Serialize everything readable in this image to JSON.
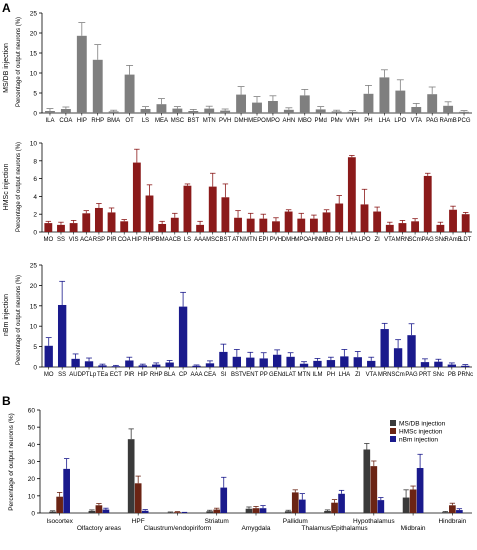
{
  "panel_letters": [
    "A",
    "B"
  ],
  "chart_data": [
    {
      "type": "bar",
      "row_label": "MS/DB injection",
      "ylabel": "Percentage of output neurons (%)",
      "ylim": [
        0,
        25
      ],
      "yticks": [
        0,
        5,
        10,
        15,
        20,
        25
      ],
      "color": "#7f7f7f",
      "categories": [
        "ILA",
        "COA",
        "HIP",
        "RHP",
        "BMA",
        "OT",
        "LS",
        "MEA",
        "MSC",
        "BST",
        "MTN",
        "PVH",
        "DMH",
        "MEPO",
        "MPO",
        "AHN",
        "MBO",
        "PMd",
        "PMv",
        "VMH",
        "PH",
        "LHA",
        "LPO",
        "VTA",
        "PAG",
        "RAmB",
        "PCG"
      ],
      "values": [
        0.5,
        1,
        19.3,
        13.3,
        0.4,
        9.6,
        1,
        2.2,
        1.1,
        0.5,
        1.1,
        0.6,
        4.6,
        2.6,
        3,
        0.8,
        4.4,
        0.9,
        0.4,
        0.3,
        4.8,
        8.9,
        5.6,
        1.5,
        4.7,
        1.8,
        0.3
      ],
      "errors": [
        0.6,
        0.5,
        3.3,
        3.8,
        0.3,
        2.3,
        0.6,
        1.4,
        0.5,
        0.4,
        0.6,
        0.4,
        2,
        1.5,
        1.3,
        0.5,
        1.5,
        0.7,
        0.3,
        0.3,
        2.1,
        1.9,
        2.7,
        0.9,
        1.8,
        1,
        0.3
      ]
    },
    {
      "type": "bar",
      "row_label": "HMSc injection",
      "ylabel": "Percentage of output neurons (%)",
      "ylim": [
        0,
        10
      ],
      "yticks": [
        0,
        2,
        4,
        6,
        8,
        10
      ],
      "color": "#8b1a1a",
      "categories": [
        "MO",
        "SS",
        "VIS",
        "ACA",
        "RSP",
        "PIR",
        "COA",
        "HIP",
        "RHP",
        "BMA",
        "ACB",
        "LS",
        "AAA",
        "MSC",
        "BST",
        "ATN",
        "MTN",
        "EPI",
        "PVH",
        "DMH",
        "MPO",
        "AHN",
        "MBO",
        "PH",
        "LHA",
        "LPO",
        "ZI",
        "VTA",
        "MRN",
        "SCm",
        "PAG",
        "SNc",
        "RAmB",
        "LDT"
      ],
      "values": [
        1,
        0.8,
        1,
        2.1,
        2.7,
        2.2,
        1.2,
        7.8,
        4.1,
        0.9,
        1.6,
        5.2,
        0.8,
        5.1,
        3.9,
        1.6,
        1.5,
        1.5,
        1.2,
        2.3,
        1.5,
        1.5,
        2.2,
        3.2,
        8.4,
        3.1,
        2.3,
        0.8,
        1,
        1.2,
        6.3,
        0.8,
        2.5,
        2
      ],
      "errors": [
        0.2,
        0.3,
        0.3,
        0.3,
        0.5,
        0.5,
        0.2,
        1.5,
        1.2,
        0.3,
        0.5,
        0.2,
        0.4,
        1.5,
        1.5,
        0.8,
        0.6,
        0.5,
        0.4,
        0.2,
        0.6,
        0.4,
        0.3,
        0.9,
        0.2,
        1.7,
        0.5,
        0.3,
        0.3,
        0.3,
        0.3,
        0.3,
        0.4,
        0.2
      ]
    },
    {
      "type": "bar",
      "row_label": "nBm injection",
      "ylabel": "Percentage of output neurons (%)",
      "ylim": [
        0,
        25
      ],
      "yticks": [
        0,
        5,
        10,
        15,
        20,
        25
      ],
      "color": "#1a1a8c",
      "categories": [
        "MO",
        "SS",
        "AUD",
        "PTLp",
        "TEa",
        "ECT",
        "PIR",
        "HIP",
        "RHP",
        "BLA",
        "CP",
        "AAA",
        "CEA",
        "SI",
        "BST",
        "VENT",
        "PP",
        "GENd",
        "LAT",
        "MTN",
        "ILM",
        "PH",
        "LHA",
        "ZI",
        "VTA",
        "MRN",
        "SCm",
        "PAG",
        "PRT",
        "SNc",
        "PB",
        "PRNc"
      ],
      "values": [
        5.2,
        15.2,
        2,
        1.4,
        0.4,
        0.2,
        1.6,
        0.4,
        0.6,
        1.1,
        14.8,
        0.3,
        0.9,
        3.7,
        2.5,
        2.3,
        2.1,
        3,
        2.5,
        0.8,
        1.5,
        1.7,
        2.6,
        2.4,
        1.5,
        9.3,
        4.6,
        7.8,
        1.2,
        1.3,
        0.6,
        0.3
      ],
      "errors": [
        2,
        5.8,
        1.2,
        0.8,
        0.3,
        0.2,
        0.8,
        0.3,
        0.4,
        0.5,
        3.5,
        0.2,
        0.6,
        1.9,
        1.8,
        1.3,
        1.4,
        1.2,
        1,
        0.5,
        0.6,
        0.7,
        1.7,
        1.4,
        0.9,
        1.4,
        2.1,
        2.8,
        0.8,
        0.6,
        0.4,
        0.3
      ]
    },
    {
      "type": "bar",
      "ylabel": "Percentage of output neurons (%)",
      "ylim": [
        0,
        60
      ],
      "yticks": [
        0,
        10,
        20,
        30,
        40,
        50,
        60
      ],
      "categories": [
        "Isocortex",
        "Olfactory areas",
        "HPF",
        "Claustrum/endopiriform",
        "Striatum",
        "Amygdala",
        "Pallidum",
        "Thalamus/Epithalamus",
        "Hypothalamus",
        "Midbrain",
        "Hindbrain"
      ],
      "series": [
        {
          "name": "MS/DB injection",
          "color": "#3a3a3a",
          "values": [
            0.8,
            1.2,
            43,
            0.3,
            1,
            2.5,
            1,
            1.2,
            37,
            9,
            0.5
          ],
          "errors": [
            0.5,
            0.6,
            6,
            0.3,
            0.6,
            1,
            0.6,
            0.6,
            3.5,
            4.5,
            0.4
          ]
        },
        {
          "name": "HMSc injection",
          "color": "#6b2414",
          "values": [
            9.5,
            4.5,
            17.3,
            0.5,
            2,
            2.8,
            12,
            6,
            27.3,
            13.7,
            4.5
          ],
          "errors": [
            2.5,
            1,
            4.2,
            0.3,
            0.8,
            1,
            1.5,
            1.8,
            3,
            2,
            1.2
          ]
        },
        {
          "name": "nBm injection",
          "color": "#1a1a8c",
          "values": [
            25.7,
            2,
            1.3,
            0.2,
            14.8,
            2.8,
            7.8,
            11.2,
            7.5,
            26.2,
            1.7
          ],
          "errors": [
            6,
            0.8,
            0.7,
            0.2,
            6,
            1.5,
            3.5,
            2,
            1.5,
            8,
            0.8
          ]
        }
      ],
      "legend_position": "top-right"
    }
  ]
}
